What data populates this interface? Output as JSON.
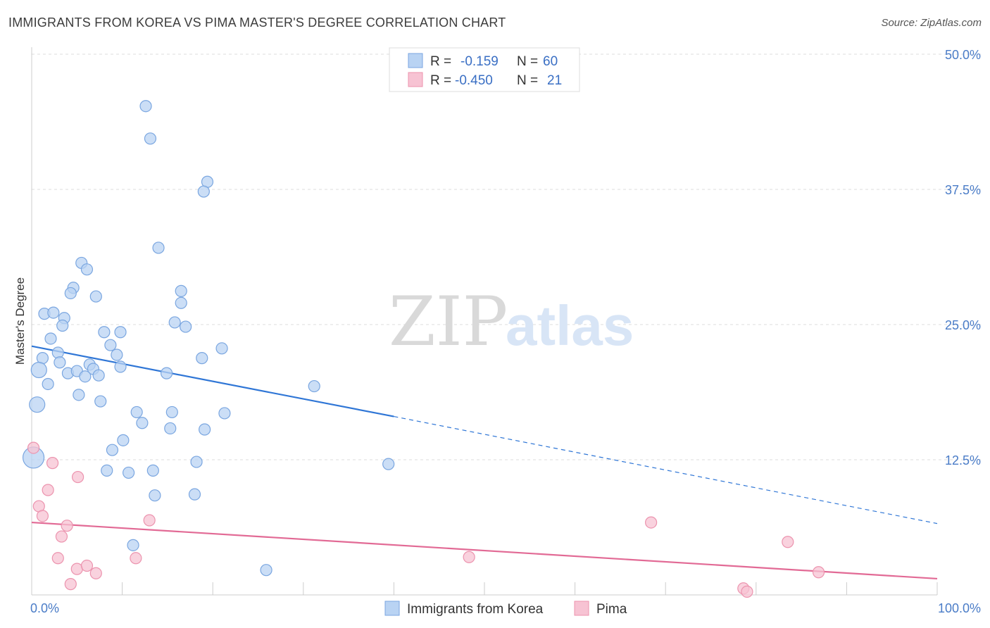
{
  "title": "IMMIGRANTS FROM KOREA VS PIMA MASTER'S DEGREE CORRELATION CHART",
  "source": "Source: ZipAtlas.com",
  "watermark": {
    "zip": "ZIP",
    "atlas": "atlas"
  },
  "colors": {
    "blue_fill": "#b9d3f3",
    "blue_stroke": "#7aa6e0",
    "blue_line": "#2f76d6",
    "pink_fill": "#f7c3d3",
    "pink_stroke": "#ec93ae",
    "pink_line": "#e26a95",
    "axis_label": "#4a7cc7",
    "grid": "#dddddd"
  },
  "legend": {
    "rows": [
      {
        "r_label": "R =",
        "r_value": "-0.159",
        "n_label": "N =",
        "n_value": "60"
      },
      {
        "r_label": "R =",
        "r_value": "-0.450",
        "n_label": "N =",
        "n_value": "21"
      }
    ]
  },
  "chart_data": {
    "type": "scatter",
    "title": "IMMIGRANTS FROM KOREA VS PIMA MASTER'S DEGREE CORRELATION CHART",
    "xlabel": "",
    "ylabel": "Master's Degree",
    "xlim": [
      0,
      100
    ],
    "ylim": [
      0,
      50
    ],
    "x_tick_labels": [
      "0.0%",
      "100.0%"
    ],
    "y_ticks": [
      12.5,
      25.0,
      37.5,
      50.0
    ],
    "y_tick_labels": [
      "12.5%",
      "25.0%",
      "37.5%",
      "50.0%"
    ],
    "grid": true,
    "legend_position": "top-center",
    "series": [
      {
        "name": "Immigrants from Korea",
        "color": "#7aa6e0",
        "points": [
          [
            12.6,
            45.2
          ],
          [
            13.1,
            42.2
          ],
          [
            19.4,
            38.2
          ],
          [
            19.0,
            37.3
          ],
          [
            14.0,
            32.1
          ],
          [
            5.5,
            30.7
          ],
          [
            6.1,
            30.1
          ],
          [
            4.6,
            28.4
          ],
          [
            4.3,
            27.9
          ],
          [
            7.1,
            27.6
          ],
          [
            16.5,
            28.1
          ],
          [
            16.5,
            27.0
          ],
          [
            1.4,
            26.0
          ],
          [
            2.4,
            26.1
          ],
          [
            3.6,
            25.6
          ],
          [
            3.4,
            24.9
          ],
          [
            15.8,
            25.2
          ],
          [
            17.0,
            24.8
          ],
          [
            8.0,
            24.3
          ],
          [
            9.8,
            24.3
          ],
          [
            2.1,
            23.7
          ],
          [
            8.7,
            23.1
          ],
          [
            2.9,
            22.4
          ],
          [
            9.4,
            22.2
          ],
          [
            21.0,
            22.8
          ],
          [
            1.2,
            21.9
          ],
          [
            18.8,
            21.9
          ],
          [
            3.1,
            21.5
          ],
          [
            6.4,
            21.3
          ],
          [
            9.8,
            21.1
          ],
          [
            0.8,
            20.8
          ],
          [
            4.0,
            20.5
          ],
          [
            5.0,
            20.7
          ],
          [
            6.8,
            20.9
          ],
          [
            7.4,
            20.3
          ],
          [
            5.9,
            20.2
          ],
          [
            14.9,
            20.5
          ],
          [
            1.8,
            19.5
          ],
          [
            31.2,
            19.3
          ],
          [
            5.2,
            18.5
          ],
          [
            7.6,
            17.9
          ],
          [
            0.6,
            17.6
          ],
          [
            11.6,
            16.9
          ],
          [
            15.5,
            16.9
          ],
          [
            21.3,
            16.8
          ],
          [
            12.2,
            15.9
          ],
          [
            15.3,
            15.4
          ],
          [
            19.1,
            15.3
          ],
          [
            10.1,
            14.3
          ],
          [
            8.9,
            13.4
          ],
          [
            0.2,
            12.7
          ],
          [
            18.2,
            12.3
          ],
          [
            39.4,
            12.1
          ],
          [
            8.3,
            11.5
          ],
          [
            10.7,
            11.3
          ],
          [
            13.4,
            11.5
          ],
          [
            13.6,
            9.2
          ],
          [
            18.0,
            9.3
          ],
          [
            11.2,
            4.6
          ],
          [
            25.9,
            2.3
          ]
        ]
      },
      {
        "name": "Pima",
        "color": "#ec93ae",
        "points": [
          [
            0.2,
            13.6
          ],
          [
            2.3,
            12.2
          ],
          [
            5.1,
            10.9
          ],
          [
            1.8,
            9.7
          ],
          [
            0.8,
            8.2
          ],
          [
            1.2,
            7.3
          ],
          [
            3.9,
            6.4
          ],
          [
            13.0,
            6.9
          ],
          [
            3.3,
            5.4
          ],
          [
            68.4,
            6.7
          ],
          [
            83.5,
            4.9
          ],
          [
            2.9,
            3.4
          ],
          [
            11.5,
            3.4
          ],
          [
            48.3,
            3.5
          ],
          [
            5.0,
            2.4
          ],
          [
            6.1,
            2.7
          ],
          [
            7.1,
            2.0
          ],
          [
            86.9,
            2.1
          ],
          [
            4.3,
            1.0
          ],
          [
            78.6,
            0.6
          ],
          [
            79.0,
            0.3
          ]
        ]
      }
    ],
    "trend_lines": [
      {
        "series": "Immigrants from Korea",
        "solid": [
          [
            0,
            23.0
          ],
          [
            40,
            16.5
          ]
        ],
        "dashed": [
          [
            40,
            16.5
          ],
          [
            100,
            6.6
          ]
        ]
      },
      {
        "series": "Pima",
        "solid": [
          [
            0,
            6.7
          ],
          [
            100,
            1.5
          ]
        ]
      }
    ]
  }
}
